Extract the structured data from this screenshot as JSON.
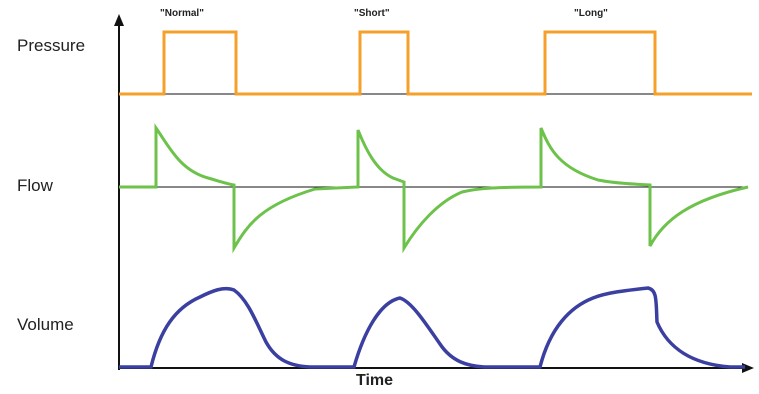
{
  "rows": {
    "pressure": {
      "label": "Pressure",
      "color": "#F5A02A"
    },
    "flow": {
      "label": "Flow",
      "color": "#6CC24A"
    },
    "volume": {
      "label": "Volume",
      "color": "#3A3FA0"
    }
  },
  "modes": [
    {
      "label": "\"Normal\""
    },
    {
      "label": "\"Short\""
    },
    {
      "label": "\"Long\""
    }
  ],
  "x_axis_label": "Time",
  "axis_color": "#111111"
}
